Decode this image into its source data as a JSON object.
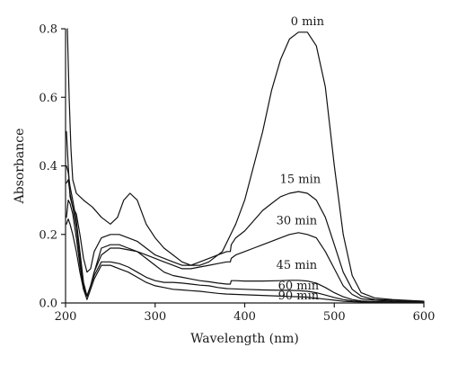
{
  "chart_data": {
    "type": "line",
    "xlabel": "Wavelength (nm)",
    "ylabel": "Absorbance",
    "xlim": [
      200,
      600
    ],
    "ylim": [
      0,
      0.8
    ],
    "x_ticks": [
      200,
      300,
      400,
      500,
      600
    ],
    "y_ticks": [
      0.0,
      0.2,
      0.4,
      0.6,
      0.8
    ],
    "x_tick_labels": [
      "200",
      "300",
      "400",
      "500",
      "600"
    ],
    "y_tick_labels": [
      "0.0",
      "0.2",
      "0.4",
      "0.6",
      "0.8"
    ],
    "grid": false,
    "line_color": "#111111",
    "series": [
      {
        "name": "0 min",
        "points": [
          [
            202,
            0.8
          ],
          [
            204,
            0.6
          ],
          [
            206,
            0.45
          ],
          [
            208,
            0.36
          ],
          [
            212,
            0.32
          ],
          [
            220,
            0.3
          ],
          [
            230,
            0.28
          ],
          [
            240,
            0.25
          ],
          [
            250,
            0.23
          ],
          [
            258,
            0.25
          ],
          [
            265,
            0.3
          ],
          [
            272,
            0.32
          ],
          [
            280,
            0.3
          ],
          [
            290,
            0.23
          ],
          [
            300,
            0.19
          ],
          [
            310,
            0.16
          ],
          [
            320,
            0.14
          ],
          [
            330,
            0.12
          ],
          [
            340,
            0.11
          ],
          [
            350,
            0.11
          ],
          [
            360,
            0.12
          ],
          [
            375,
            0.15
          ],
          [
            390,
            0.23
          ],
          [
            400,
            0.3
          ],
          [
            410,
            0.4
          ],
          [
            420,
            0.5
          ],
          [
            430,
            0.62
          ],
          [
            440,
            0.71
          ],
          [
            450,
            0.77
          ],
          [
            460,
            0.79
          ],
          [
            470,
            0.79
          ],
          [
            480,
            0.75
          ],
          [
            490,
            0.63
          ],
          [
            500,
            0.4
          ],
          [
            510,
            0.2
          ],
          [
            520,
            0.08
          ],
          [
            530,
            0.03
          ],
          [
            545,
            0.015
          ],
          [
            565,
            0.01
          ],
          [
            600,
            0.005
          ]
        ]
      },
      {
        "name": "15 min",
        "points": [
          [
            201,
            0.5
          ],
          [
            203,
            0.4
          ],
          [
            205,
            0.31
          ],
          [
            208,
            0.28
          ],
          [
            212,
            0.26
          ],
          [
            216,
            0.2
          ],
          [
            220,
            0.13
          ],
          [
            224,
            0.09
          ],
          [
            228,
            0.1
          ],
          [
            232,
            0.15
          ],
          [
            240,
            0.19
          ],
          [
            250,
            0.2
          ],
          [
            260,
            0.2
          ],
          [
            270,
            0.19
          ],
          [
            280,
            0.18
          ],
          [
            290,
            0.16
          ],
          [
            300,
            0.14
          ],
          [
            310,
            0.13
          ],
          [
            320,
            0.12
          ],
          [
            330,
            0.11
          ],
          [
            340,
            0.11
          ],
          [
            350,
            0.12
          ],
          [
            360,
            0.13
          ],
          [
            370,
            0.14
          ],
          [
            380,
            0.15
          ],
          [
            384,
            0.15
          ],
          [
            385,
            0.17
          ],
          [
            390,
            0.19
          ],
          [
            400,
            0.21
          ],
          [
            410,
            0.24
          ],
          [
            420,
            0.27
          ],
          [
            430,
            0.29
          ],
          [
            440,
            0.31
          ],
          [
            450,
            0.32
          ],
          [
            460,
            0.325
          ],
          [
            470,
            0.32
          ],
          [
            480,
            0.3
          ],
          [
            490,
            0.25
          ],
          [
            500,
            0.17
          ],
          [
            510,
            0.09
          ],
          [
            520,
            0.04
          ],
          [
            530,
            0.02
          ],
          [
            545,
            0.01
          ],
          [
            565,
            0.008
          ],
          [
            600,
            0.005
          ]
        ]
      },
      {
        "name": "30 min",
        "points": [
          [
            201,
            0.4
          ],
          [
            203,
            0.38
          ],
          [
            205,
            0.34
          ],
          [
            208,
            0.3
          ],
          [
            212,
            0.24
          ],
          [
            216,
            0.15
          ],
          [
            220,
            0.06
          ],
          [
            224,
            0.02
          ],
          [
            228,
            0.05
          ],
          [
            232,
            0.09
          ],
          [
            240,
            0.14
          ],
          [
            250,
            0.16
          ],
          [
            260,
            0.16
          ],
          [
            270,
            0.155
          ],
          [
            280,
            0.15
          ],
          [
            290,
            0.14
          ],
          [
            300,
            0.13
          ],
          [
            310,
            0.12
          ],
          [
            320,
            0.11
          ],
          [
            330,
            0.1
          ],
          [
            340,
            0.1
          ],
          [
            350,
            0.105
          ],
          [
            360,
            0.11
          ],
          [
            370,
            0.115
          ],
          [
            380,
            0.12
          ],
          [
            384,
            0.12
          ],
          [
            385,
            0.13
          ],
          [
            390,
            0.14
          ],
          [
            400,
            0.15
          ],
          [
            410,
            0.16
          ],
          [
            420,
            0.17
          ],
          [
            430,
            0.18
          ],
          [
            440,
            0.19
          ],
          [
            450,
            0.2
          ],
          [
            460,
            0.205
          ],
          [
            470,
            0.2
          ],
          [
            480,
            0.19
          ],
          [
            490,
            0.15
          ],
          [
            500,
            0.1
          ],
          [
            510,
            0.05
          ],
          [
            520,
            0.025
          ],
          [
            530,
            0.012
          ],
          [
            545,
            0.008
          ],
          [
            565,
            0.005
          ],
          [
            600,
            0.004
          ]
        ]
      },
      {
        "name": "45 min",
        "points": [
          [
            201,
            0.35
          ],
          [
            203,
            0.36
          ],
          [
            205,
            0.32
          ],
          [
            208,
            0.28
          ],
          [
            212,
            0.22
          ],
          [
            216,
            0.13
          ],
          [
            220,
            0.05
          ],
          [
            224,
            0.02
          ],
          [
            228,
            0.05
          ],
          [
            232,
            0.09
          ],
          [
            240,
            0.16
          ],
          [
            250,
            0.17
          ],
          [
            260,
            0.17
          ],
          [
            270,
            0.16
          ],
          [
            280,
            0.15
          ],
          [
            290,
            0.13
          ],
          [
            300,
            0.11
          ],
          [
            310,
            0.09
          ],
          [
            320,
            0.08
          ],
          [
            330,
            0.075
          ],
          [
            340,
            0.07
          ],
          [
            350,
            0.065
          ],
          [
            360,
            0.062
          ],
          [
            370,
            0.058
          ],
          [
            380,
            0.055
          ],
          [
            384,
            0.055
          ],
          [
            385,
            0.065
          ],
          [
            390,
            0.065
          ],
          [
            400,
            0.064
          ],
          [
            420,
            0.064
          ],
          [
            440,
            0.065
          ],
          [
            450,
            0.066
          ],
          [
            460,
            0.066
          ],
          [
            470,
            0.064
          ],
          [
            480,
            0.058
          ],
          [
            490,
            0.045
          ],
          [
            500,
            0.03
          ],
          [
            510,
            0.018
          ],
          [
            520,
            0.01
          ],
          [
            530,
            0.006
          ],
          [
            545,
            0.004
          ],
          [
            565,
            0.003
          ],
          [
            600,
            0.002
          ]
        ]
      },
      {
        "name": "60 min",
        "points": [
          [
            201,
            0.25
          ],
          [
            203,
            0.3
          ],
          [
            205,
            0.29
          ],
          [
            208,
            0.26
          ],
          [
            212,
            0.19
          ],
          [
            216,
            0.11
          ],
          [
            220,
            0.04
          ],
          [
            224,
            0.02
          ],
          [
            228,
            0.05
          ],
          [
            232,
            0.08
          ],
          [
            240,
            0.12
          ],
          [
            250,
            0.12
          ],
          [
            260,
            0.115
          ],
          [
            270,
            0.105
          ],
          [
            280,
            0.09
          ],
          [
            290,
            0.075
          ],
          [
            300,
            0.065
          ],
          [
            310,
            0.06
          ],
          [
            320,
            0.06
          ],
          [
            330,
            0.058
          ],
          [
            340,
            0.055
          ],
          [
            350,
            0.052
          ],
          [
            360,
            0.05
          ],
          [
            370,
            0.045
          ],
          [
            380,
            0.042
          ],
          [
            400,
            0.04
          ],
          [
            420,
            0.038
          ],
          [
            440,
            0.037
          ],
          [
            450,
            0.037
          ],
          [
            460,
            0.036
          ],
          [
            470,
            0.034
          ],
          [
            480,
            0.03
          ],
          [
            490,
            0.023
          ],
          [
            500,
            0.016
          ],
          [
            510,
            0.01
          ],
          [
            520,
            0.006
          ],
          [
            530,
            0.004
          ],
          [
            545,
            0.003
          ],
          [
            565,
            0.002
          ],
          [
            600,
            0.002
          ]
        ]
      },
      {
        "name": "90 min",
        "points": [
          [
            201,
            0.23
          ],
          [
            203,
            0.245
          ],
          [
            205,
            0.23
          ],
          [
            208,
            0.2
          ],
          [
            212,
            0.15
          ],
          [
            216,
            0.09
          ],
          [
            220,
            0.04
          ],
          [
            224,
            0.01
          ],
          [
            228,
            0.04
          ],
          [
            232,
            0.07
          ],
          [
            240,
            0.11
          ],
          [
            250,
            0.11
          ],
          [
            260,
            0.1
          ],
          [
            270,
            0.09
          ],
          [
            280,
            0.075
          ],
          [
            290,
            0.06
          ],
          [
            300,
            0.05
          ],
          [
            310,
            0.045
          ],
          [
            320,
            0.04
          ],
          [
            330,
            0.038
          ],
          [
            340,
            0.036
          ],
          [
            350,
            0.034
          ],
          [
            360,
            0.031
          ],
          [
            370,
            0.028
          ],
          [
            380,
            0.026
          ],
          [
            400,
            0.024
          ],
          [
            420,
            0.022
          ],
          [
            440,
            0.02
          ],
          [
            450,
            0.019
          ],
          [
            460,
            0.018
          ],
          [
            470,
            0.017
          ],
          [
            480,
            0.014
          ],
          [
            490,
            0.011
          ],
          [
            500,
            0.008
          ],
          [
            510,
            0.005
          ],
          [
            520,
            0.004
          ],
          [
            530,
            0.003
          ],
          [
            545,
            0.002
          ],
          [
            565,
            0.002
          ],
          [
            600,
            0.001
          ]
        ]
      }
    ],
    "annotations": [
      {
        "text": "0 min",
        "x": 470,
        "y": 0.81
      },
      {
        "text": "15 min",
        "x": 462,
        "y": 0.35
      },
      {
        "text": "30 min",
        "x": 458,
        "y": 0.23
      },
      {
        "text": "45 min",
        "x": 458,
        "y": 0.1
      },
      {
        "text": "60 min",
        "x": 460,
        "y": 0.04
      },
      {
        "text": "90 min",
        "x": 460,
        "y": 0.01
      }
    ]
  }
}
